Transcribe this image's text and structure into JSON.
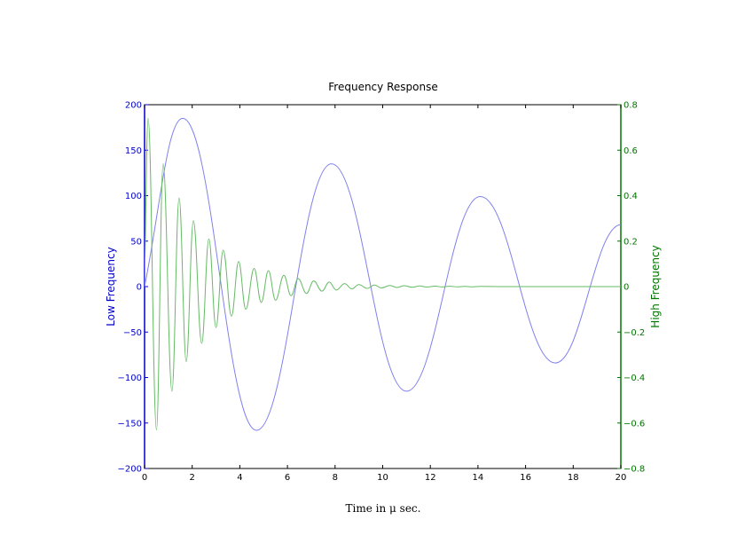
{
  "chart_data": {
    "type": "line",
    "title": "Frequency Response",
    "xlabel": "Time in μ sec.",
    "xlim": [
      0,
      20
    ],
    "x_ticks": [
      "0",
      "2",
      "4",
      "6",
      "8",
      "10",
      "12",
      "14",
      "16",
      "18",
      "20"
    ],
    "grid": false,
    "legend": "none",
    "y_left": {
      "label": "Low Frequency",
      "color": "#0000cc",
      "lim": [
        -200,
        200
      ],
      "ticks": [
        "−200",
        "−150",
        "−100",
        "−50",
        "0",
        "50",
        "100",
        "150",
        "200"
      ]
    },
    "y_right": {
      "label": "High Frequency",
      "color": "#007700",
      "lim": [
        -0.8,
        0.8
      ],
      "ticks": [
        "−0.8",
        "−0.6",
        "−0.4",
        "−0.2",
        "0",
        "0.2",
        "0.4",
        "0.6",
        "0.8"
      ]
    },
    "series": [
      {
        "axis": "left",
        "color": "#8080ee",
        "points": [
          [
            0,
            0
          ],
          [
            1.6,
            185
          ],
          [
            4.7,
            -158
          ],
          [
            7.85,
            135
          ],
          [
            11.0,
            -115
          ],
          [
            14.1,
            99
          ],
          [
            17.25,
            -84
          ],
          [
            20,
            68
          ]
        ]
      },
      {
        "axis": "right",
        "color": "#66bb66",
        "points": [
          [
            0,
            0
          ],
          [
            0.15,
            0.74
          ],
          [
            0.5,
            -0.63
          ],
          [
            0.78,
            0.54
          ],
          [
            1.15,
            -0.46
          ],
          [
            1.45,
            0.39
          ],
          [
            1.75,
            -0.33
          ],
          [
            2.05,
            0.29
          ],
          [
            2.4,
            -0.25
          ],
          [
            2.7,
            0.21
          ],
          [
            3.0,
            -0.18
          ],
          [
            3.3,
            0.16
          ],
          [
            3.65,
            -0.13
          ],
          [
            3.95,
            0.11
          ],
          [
            4.25,
            -0.1
          ],
          [
            4.6,
            0.08
          ],
          [
            4.9,
            -0.07
          ],
          [
            5.2,
            0.07
          ],
          [
            5.5,
            -0.06
          ],
          [
            5.85,
            0.05
          ],
          [
            6.15,
            -0.04
          ],
          [
            6.45,
            0.035
          ],
          [
            6.8,
            -0.03
          ],
          [
            7.1,
            0.025
          ],
          [
            7.45,
            -0.02
          ],
          [
            7.75,
            0.02
          ],
          [
            8.05,
            -0.015
          ],
          [
            8.4,
            0.013
          ],
          [
            8.7,
            -0.01
          ],
          [
            9.0,
            0.009
          ],
          [
            9.35,
            -0.008
          ],
          [
            9.65,
            0.007
          ],
          [
            9.95,
            -0.006
          ],
          [
            10.3,
            0.005
          ],
          [
            10.6,
            -0.004
          ],
          [
            10.9,
            0.004
          ],
          [
            11.25,
            -0.003
          ],
          [
            11.55,
            0.003
          ],
          [
            11.85,
            -0.002
          ],
          [
            12.2,
            0.002
          ],
          [
            12.5,
            -0.0015
          ],
          [
            12.8,
            0.0015
          ],
          [
            13.15,
            -0.001
          ],
          [
            13.45,
            0.001
          ],
          [
            13.75,
            -0.001
          ],
          [
            14.1,
            0.001
          ],
          [
            15,
            0
          ],
          [
            20,
            0
          ]
        ]
      }
    ]
  }
}
